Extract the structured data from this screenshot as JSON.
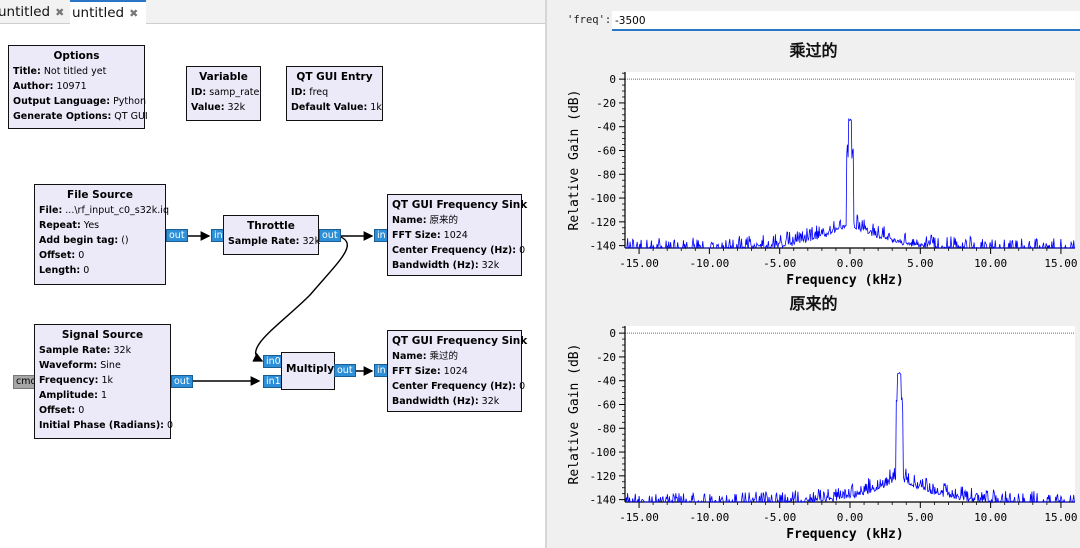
{
  "tabs": [
    {
      "label": "untitled",
      "close": "✖"
    },
    {
      "label": "untitled",
      "close": "✖"
    }
  ],
  "blocks": {
    "options": {
      "title": "Options",
      "params": [
        {
          "k": "Title:",
          "v": "Not titled yet"
        },
        {
          "k": "Author:",
          "v": "10971"
        },
        {
          "k": "Output Language:",
          "v": "Python"
        },
        {
          "k": "Generate Options:",
          "v": "QT GUI"
        }
      ]
    },
    "variable": {
      "title": "Variable",
      "params": [
        {
          "k": "ID:",
          "v": "samp_rate"
        },
        {
          "k": "Value:",
          "v": "32k"
        }
      ]
    },
    "entry": {
      "title": "QT GUI Entry",
      "params": [
        {
          "k": "ID:",
          "v": "freq"
        },
        {
          "k": "Default Value:",
          "v": "1k"
        }
      ]
    },
    "file_source": {
      "title": "File Source",
      "params": [
        {
          "k": "File:",
          "v": "...\\rf_input_c0_s32k.iq"
        },
        {
          "k": "Repeat:",
          "v": "Yes"
        },
        {
          "k": "Add begin tag:",
          "v": "()"
        },
        {
          "k": "Offset:",
          "v": "0"
        },
        {
          "k": "Length:",
          "v": "0"
        }
      ],
      "out": "out"
    },
    "throttle": {
      "title": "Throttle",
      "params": [
        {
          "k": "Sample Rate:",
          "v": "32k"
        }
      ],
      "in": "in",
      "out": "out"
    },
    "sink1": {
      "title": "QT GUI Frequency Sink",
      "params": [
        {
          "k": "Name:",
          "v": "原来的"
        },
        {
          "k": "FFT Size:",
          "v": "1024"
        },
        {
          "k": "Center Frequency (Hz):",
          "v": "0"
        },
        {
          "k": "Bandwidth (Hz):",
          "v": "32k"
        }
      ],
      "in": "in"
    },
    "signal_source": {
      "title": "Signal Source",
      "params": [
        {
          "k": "Sample Rate:",
          "v": "32k"
        },
        {
          "k": "Waveform:",
          "v": "Sine"
        },
        {
          "k": "Frequency:",
          "v": "1k"
        },
        {
          "k": "Amplitude:",
          "v": "1"
        },
        {
          "k": "Offset:",
          "v": "0"
        },
        {
          "k": "Initial Phase (Radians):",
          "v": "0"
        }
      ],
      "cmd": "cmd",
      "out": "out"
    },
    "multiply": {
      "title": "Multiply",
      "in0": "in0",
      "in1": "in1",
      "out": "out"
    },
    "sink2": {
      "title": "QT GUI Frequency Sink",
      "params": [
        {
          "k": "Name:",
          "v": "乘过的"
        },
        {
          "k": "FFT Size:",
          "v": "1024"
        },
        {
          "k": "Center Frequency (Hz):",
          "v": "0"
        },
        {
          "k": "Bandwidth (Hz):",
          "v": "32k"
        }
      ],
      "in": "in"
    }
  },
  "qt": {
    "freq_label": "'freq':",
    "freq_value": "-3500"
  },
  "chart_data": [
    {
      "type": "line",
      "title": "乘过的",
      "xlabel": "Frequency (kHz)",
      "ylabel": "Relative Gain (dB)",
      "xlim": [
        -16,
        16
      ],
      "ylim": [
        -142,
        6
      ],
      "xticks": [
        "-15.00",
        "-10.00",
        "-5.00",
        "0.00",
        "5.00",
        "10.00",
        "15.00"
      ],
      "yticks": [
        "0",
        "-20",
        "-40",
        "-60",
        "-80",
        "-100",
        "-120",
        "-140"
      ],
      "reference_line_db": 0,
      "peak": {
        "x": 0.0,
        "y": -33
      },
      "color": "#0000ff"
    },
    {
      "type": "line",
      "title": "原来的",
      "xlabel": "Frequency (kHz)",
      "ylabel": "Relative Gain (dB)",
      "xlim": [
        -16,
        16
      ],
      "ylim": [
        -142,
        6
      ],
      "xticks": [
        "-15.00",
        "-10.00",
        "-5.00",
        "0.00",
        "5.00",
        "10.00",
        "15.00"
      ],
      "yticks": [
        "0",
        "-20",
        "-40",
        "-60",
        "-80",
        "-100",
        "-120",
        "-140"
      ],
      "reference_line_db": 0,
      "peak": {
        "x": 3.5,
        "y": -33
      },
      "color": "#0000ff"
    }
  ]
}
